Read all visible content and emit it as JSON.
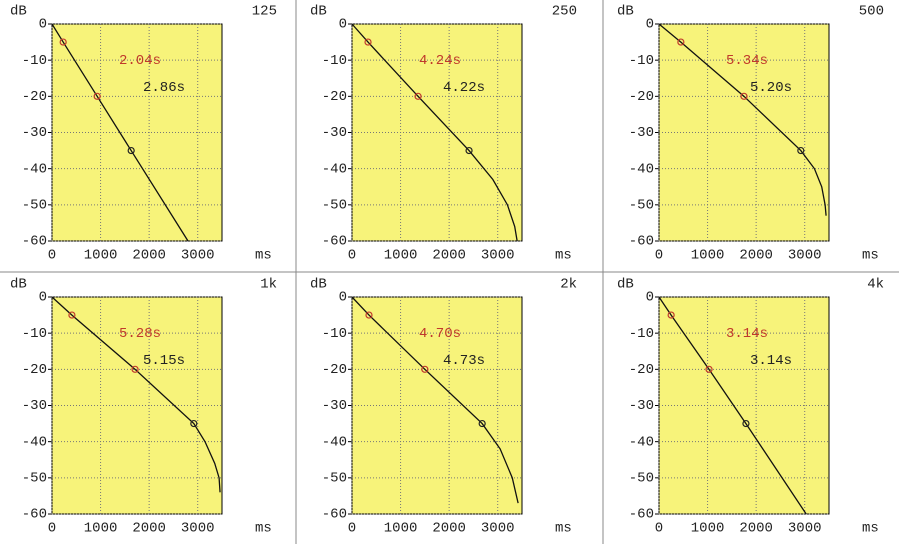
{
  "chart_data": [
    {
      "type": "line",
      "title": "125",
      "ylabel": "dB",
      "xlabel": "ms",
      "xlim": [
        0,
        3500
      ],
      "ylim": [
        -60,
        0
      ],
      "xticks": [
        0,
        1000,
        2000,
        3000
      ],
      "yticks": [
        0,
        -10,
        -20,
        -30,
        -40,
        -50,
        -60
      ],
      "grid": true,
      "background": "#f7f37a",
      "series": [
        {
          "color": "#111111",
          "x": [
            0,
            230,
            930,
            1630,
            2800
          ],
          "values": [
            0,
            -5,
            -20,
            -35,
            -60
          ]
        }
      ],
      "points": {
        "x": [
          230,
          930,
          1630
        ],
        "values": [
          -5,
          -20,
          -35
        ],
        "colors": [
          "#c0392b",
          "#c0392b",
          "#222222"
        ]
      },
      "annotations": [
        {
          "text": "2.04s",
          "color": "#c0392b"
        },
        {
          "text": "2.86s",
          "color": "#222222"
        }
      ]
    },
    {
      "type": "line",
      "title": "250",
      "ylabel": "dB",
      "xlabel": "ms",
      "xlim": [
        0,
        3500
      ],
      "ylim": [
        -60,
        0
      ],
      "xticks": [
        0,
        1000,
        2000,
        3000
      ],
      "yticks": [
        0,
        -10,
        -20,
        -30,
        -40,
        -50,
        -60
      ],
      "grid": true,
      "background": "#f7f37a",
      "series": [
        {
          "color": "#111111",
          "x": [
            0,
            330,
            1360,
            2410,
            2900,
            3200,
            3350,
            3400
          ],
          "values": [
            0,
            -5,
            -20,
            -35,
            -43,
            -50,
            -56,
            -60
          ]
        }
      ],
      "points": {
        "x": [
          330,
          1360,
          2410
        ],
        "values": [
          -5,
          -20,
          -35
        ],
        "colors": [
          "#c0392b",
          "#c0392b",
          "#222222"
        ]
      },
      "annotations": [
        {
          "text": "4.24s",
          "color": "#c0392b"
        },
        {
          "text": "4.22s",
          "color": "#222222"
        }
      ]
    },
    {
      "type": "line",
      "title": "500",
      "ylabel": "dB",
      "xlabel": "ms",
      "xlim": [
        0,
        3500
      ],
      "ylim": [
        -60,
        0
      ],
      "xticks": [
        0,
        1000,
        2000,
        3000
      ],
      "yticks": [
        0,
        -10,
        -20,
        -30,
        -40,
        -50,
        -60
      ],
      "grid": true,
      "background": "#f7f37a",
      "series": [
        {
          "color": "#111111",
          "x": [
            0,
            450,
            1750,
            2920,
            3200,
            3350,
            3420,
            3440
          ],
          "values": [
            0,
            -5,
            -20,
            -35,
            -40,
            -45,
            -50,
            -53
          ]
        }
      ],
      "points": {
        "x": [
          450,
          1750,
          2920
        ],
        "values": [
          -5,
          -20,
          -35
        ],
        "colors": [
          "#c0392b",
          "#c0392b",
          "#222222"
        ]
      },
      "annotations": [
        {
          "text": "5.34s",
          "color": "#c0392b"
        },
        {
          "text": "5.20s",
          "color": "#222222"
        }
      ]
    },
    {
      "type": "line",
      "title": "1k",
      "ylabel": "dB",
      "xlabel": "ms",
      "xlim": [
        0,
        3500
      ],
      "ylim": [
        -60,
        0
      ],
      "xticks": [
        0,
        1000,
        2000,
        3000
      ],
      "yticks": [
        0,
        -10,
        -20,
        -30,
        -40,
        -50,
        -60
      ],
      "grid": true,
      "background": "#f7f37a",
      "series": [
        {
          "color": "#111111",
          "x": [
            0,
            410,
            1710,
            2920,
            3150,
            3350,
            3440,
            3460
          ],
          "values": [
            0,
            -5,
            -20,
            -35,
            -40,
            -46,
            -50,
            -54
          ]
        }
      ],
      "points": {
        "x": [
          410,
          1710,
          2920
        ],
        "values": [
          -5,
          -20,
          -35
        ],
        "colors": [
          "#c0392b",
          "#c0392b",
          "#222222"
        ]
      },
      "annotations": [
        {
          "text": "5.28s",
          "color": "#c0392b"
        },
        {
          "text": "5.15s",
          "color": "#222222"
        }
      ]
    },
    {
      "type": "line",
      "title": "2k",
      "ylabel": "dB",
      "xlabel": "ms",
      "xlim": [
        0,
        3500
      ],
      "ylim": [
        -60,
        0
      ],
      "xticks": [
        0,
        1000,
        2000,
        3000
      ],
      "yticks": [
        0,
        -10,
        -20,
        -30,
        -40,
        -50,
        -60
      ],
      "grid": true,
      "background": "#f7f37a",
      "series": [
        {
          "color": "#111111",
          "x": [
            0,
            350,
            1500,
            2680,
            3050,
            3300,
            3420
          ],
          "values": [
            0,
            -5,
            -20,
            -35,
            -42,
            -50,
            -57
          ]
        }
      ],
      "points": {
        "x": [
          350,
          1500,
          2680
        ],
        "values": [
          -5,
          -20,
          -35
        ],
        "colors": [
          "#c0392b",
          "#c0392b",
          "#222222"
        ]
      },
      "annotations": [
        {
          "text": "4.70s",
          "color": "#c0392b"
        },
        {
          "text": "4.73s",
          "color": "#222222"
        }
      ]
    },
    {
      "type": "line",
      "title": "4k",
      "ylabel": "dB",
      "xlabel": "ms",
      "xlim": [
        0,
        3500
      ],
      "ylim": [
        -60,
        0
      ],
      "xticks": [
        0,
        1000,
        2000,
        3000
      ],
      "yticks": [
        0,
        -10,
        -20,
        -30,
        -40,
        -50,
        -60
      ],
      "grid": true,
      "background": "#f7f37a",
      "series": [
        {
          "color": "#111111",
          "x": [
            0,
            250,
            1030,
            1790,
            3030
          ],
          "values": [
            0,
            -5,
            -20,
            -35,
            -60
          ]
        }
      ],
      "points": {
        "x": [
          250,
          1030,
          1790
        ],
        "values": [
          -5,
          -20,
          -35
        ],
        "colors": [
          "#c0392b",
          "#c0392b",
          "#222222"
        ]
      },
      "annotations": [
        {
          "text": "3.14s",
          "color": "#c0392b"
        },
        {
          "text": "3.14s",
          "color": "#222222"
        }
      ]
    }
  ]
}
